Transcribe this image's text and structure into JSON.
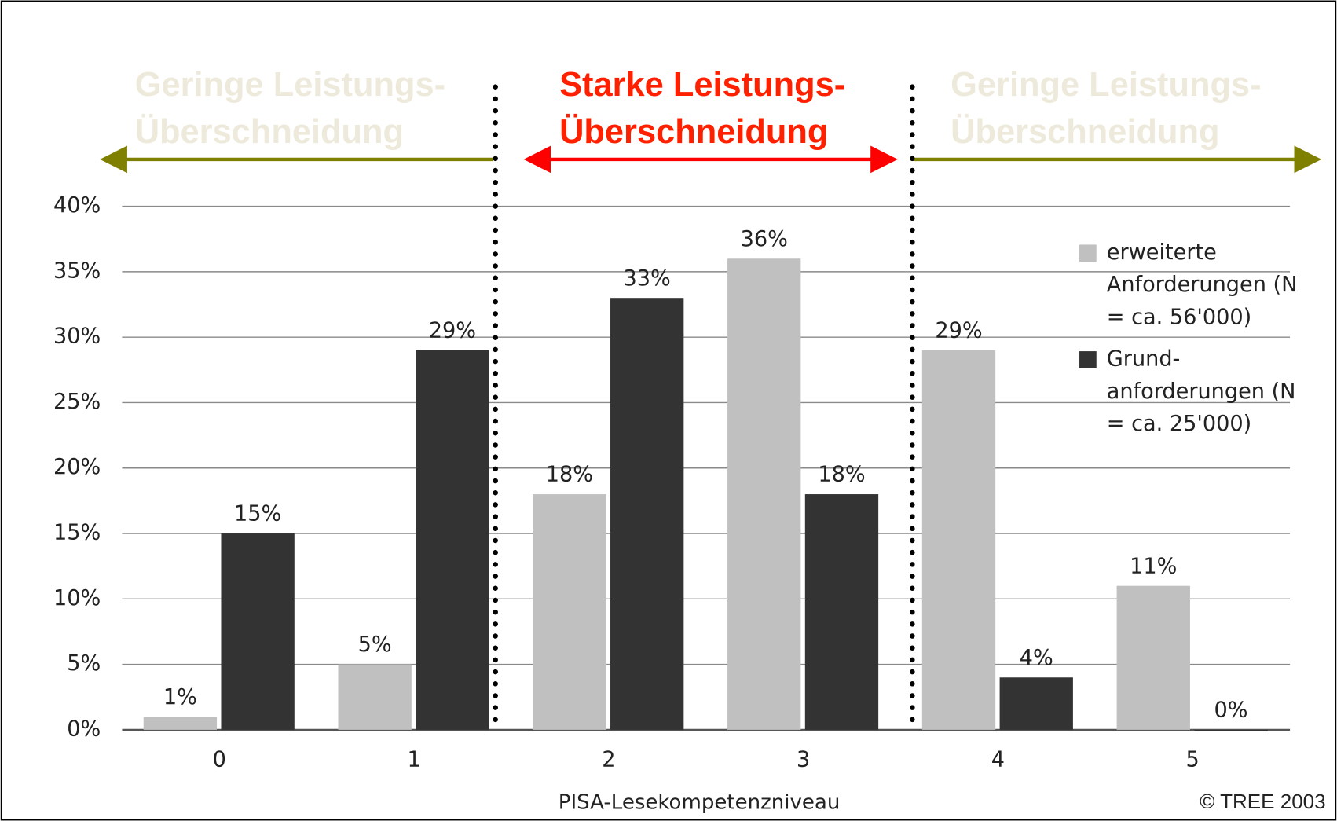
{
  "chart_data": {
    "type": "bar",
    "annotations": [
      {
        "lines": [
          "Geringe Leistungs-",
          "Überschneidung"
        ],
        "color": "#eeeadb"
      },
      {
        "lines": [
          "Starke Leistungs-",
          "Überschneidung"
        ],
        "color": "#ff2000"
      },
      {
        "lines": [
          "Geringe Leistungs-",
          "Überschneidung"
        ],
        "color": "#eeeadb"
      }
    ],
    "x_label": "PISA-Lesekompetenzniveau",
    "source": "© TREE 2003",
    "categories": [
      "0",
      "1",
      "2",
      "3",
      "4",
      "5"
    ],
    "series": [
      {
        "name": "erweiterte Anforderungen (N = ca. 56'000)",
        "color": "#c0c0c0",
        "values": [
          1,
          5,
          18,
          36,
          29,
          11
        ],
        "value_labels": [
          "1%",
          "5%",
          "18%",
          "36%",
          "29%",
          "11%"
        ]
      },
      {
        "name": "Grund-anforderungen (N = ca. 25'000)",
        "color": "#333333",
        "values": [
          15,
          29,
          33,
          18,
          4,
          0
        ],
        "value_labels": [
          "15%",
          "29%",
          "33%",
          "18%",
          "4%",
          "0%"
        ]
      }
    ],
    "ylim": [
      0,
      40
    ],
    "yticks": [
      {
        "value": 0,
        "label": "0%"
      },
      {
        "value": 5,
        "label": "5%"
      },
      {
        "value": 10,
        "label": "10%"
      },
      {
        "value": 15,
        "label": "15%"
      },
      {
        "value": 20,
        "label": "20%"
      },
      {
        "value": 25,
        "label": "25%"
      },
      {
        "value": 30,
        "label": "30%"
      },
      {
        "value": 35,
        "label": "35%"
      },
      {
        "value": 40,
        "label": "40%"
      }
    ],
    "grid": true,
    "legend": "right"
  }
}
